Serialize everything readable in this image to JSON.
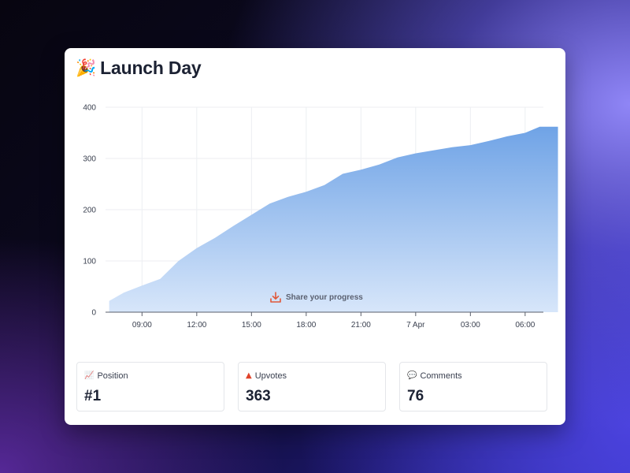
{
  "page": {
    "title": "Launch Day",
    "title_icon": "🎉"
  },
  "share": {
    "label": "Share your progress",
    "icon": "download-icon"
  },
  "stats": [
    {
      "icon": "📈",
      "icon_name": "chart-icon",
      "label": "Position",
      "value": "#1"
    },
    {
      "icon": "▲",
      "icon_name": "upvote-triangle-icon",
      "label": "Upvotes",
      "value": "363"
    },
    {
      "icon": "💬",
      "icon_name": "speech-bubble-icon",
      "label": "Comments",
      "value": "76"
    }
  ],
  "colors": {
    "area_top": "#6fa3e6",
    "area_bottom": "#d7e6fa",
    "share_icon": "#e0583a",
    "upvote_icon": "#e0432a"
  },
  "chart_data": {
    "type": "area",
    "title": "",
    "xlabel": "",
    "ylabel": "",
    "ylim": [
      0,
      400
    ],
    "yticks": [
      0,
      100,
      200,
      300,
      400
    ],
    "xlim_hours": [
      7,
      31
    ],
    "xticks": [
      {
        "hour": 9,
        "label": "09:00"
      },
      {
        "hour": 12,
        "label": "12:00"
      },
      {
        "hour": 15,
        "label": "15:00"
      },
      {
        "hour": 18,
        "label": "18:00"
      },
      {
        "hour": 21,
        "label": "21:00"
      },
      {
        "hour": 24,
        "label": "7 Apr"
      },
      {
        "hour": 27,
        "label": "03:00"
      },
      {
        "hour": 30,
        "label": "06:00"
      }
    ],
    "grid": true,
    "series": [
      {
        "x_hours": [
          7.2,
          8,
          9,
          10,
          11,
          12,
          13,
          14,
          15,
          16,
          17,
          18,
          19,
          20,
          21,
          22,
          23,
          24,
          25,
          26,
          27,
          28,
          29,
          30,
          30.8,
          31.8
        ],
        "values": [
          22,
          38,
          52,
          65,
          100,
          125,
          145,
          168,
          190,
          212,
          225,
          235,
          248,
          270,
          278,
          288,
          302,
          310,
          316,
          322,
          326,
          334,
          343,
          350,
          362,
          362
        ]
      }
    ]
  }
}
